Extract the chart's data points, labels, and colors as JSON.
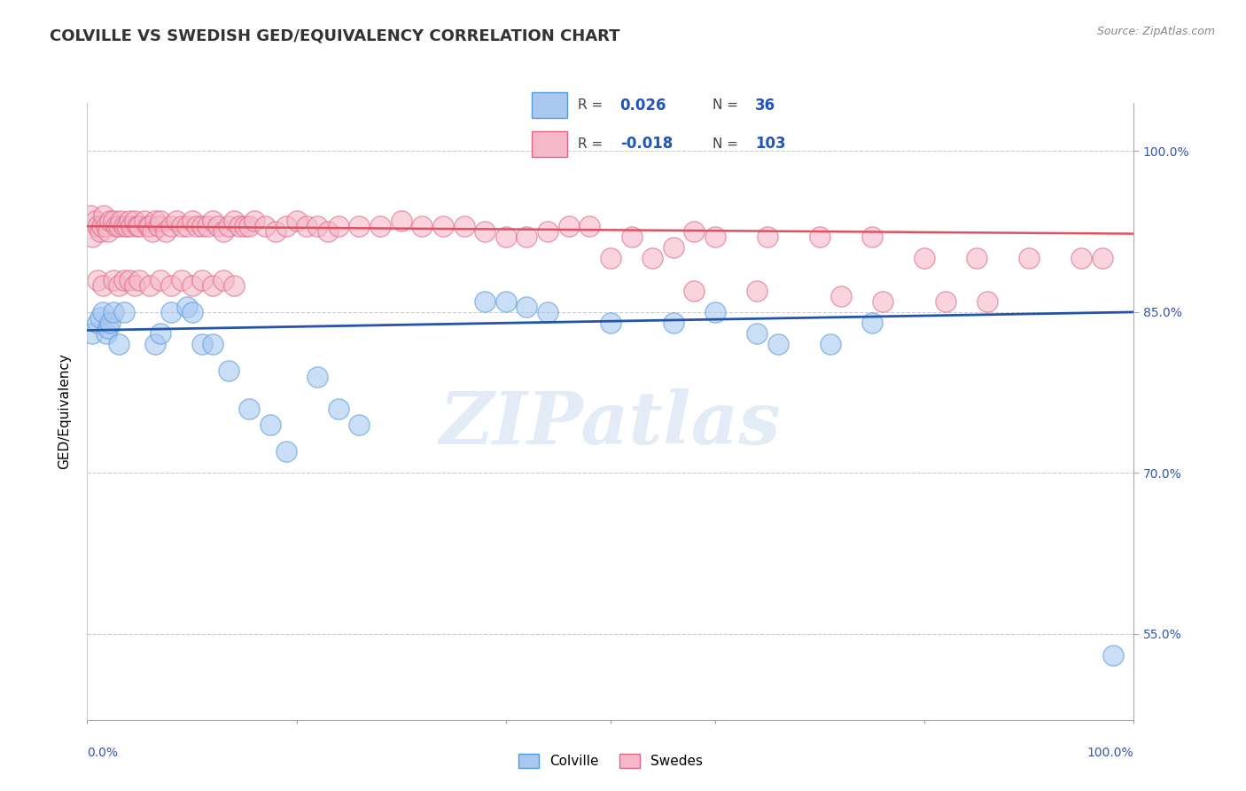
{
  "title": "COLVILLE VS SWEDISH GED/EQUIVALENCY CORRELATION CHART",
  "source": "Source: ZipAtlas.com",
  "ylabel": "GED/Equivalency",
  "blue_color": "#a8c8f0",
  "pink_color": "#f5b8c8",
  "blue_line_color": "#2255aa",
  "pink_line_color": "#e05060",
  "blue_edge_color": "#5599dd",
  "pink_edge_color": "#dd6688",
  "watermark_text": "ZIPatlas",
  "ytick_labels": [
    "55.0%",
    "70.0%",
    "85.0%",
    "100.0%"
  ],
  "ytick_values": [
    0.55,
    0.7,
    0.85,
    1.0
  ],
  "legend_r_blue": "0.026",
  "legend_n_blue": "36",
  "legend_r_pink": "-0.018",
  "legend_n_pink": "103",
  "blue_scatter_x": [
    0.005,
    0.01,
    0.012,
    0.015,
    0.018,
    0.02,
    0.022,
    0.025,
    0.03,
    0.035,
    0.065,
    0.07,
    0.08,
    0.095,
    0.1,
    0.11,
    0.12,
    0.135,
    0.155,
    0.175,
    0.19,
    0.22,
    0.24,
    0.26,
    0.38,
    0.4,
    0.42,
    0.44,
    0.5,
    0.56,
    0.6,
    0.64,
    0.66,
    0.71,
    0.75,
    0.98
  ],
  "blue_scatter_y": [
    0.83,
    0.84,
    0.845,
    0.85,
    0.83,
    0.835,
    0.84,
    0.85,
    0.82,
    0.85,
    0.82,
    0.83,
    0.85,
    0.855,
    0.85,
    0.82,
    0.82,
    0.795,
    0.76,
    0.745,
    0.72,
    0.79,
    0.76,
    0.745,
    0.86,
    0.86,
    0.855,
    0.85,
    0.84,
    0.84,
    0.85,
    0.83,
    0.82,
    0.82,
    0.84,
    0.53
  ],
  "pink_scatter_x": [
    0.003,
    0.005,
    0.008,
    0.01,
    0.012,
    0.014,
    0.016,
    0.018,
    0.02,
    0.022,
    0.025,
    0.028,
    0.03,
    0.032,
    0.035,
    0.038,
    0.04,
    0.042,
    0.045,
    0.048,
    0.05,
    0.055,
    0.058,
    0.06,
    0.062,
    0.065,
    0.068,
    0.07,
    0.075,
    0.08,
    0.085,
    0.09,
    0.095,
    0.1,
    0.105,
    0.11,
    0.115,
    0.12,
    0.125,
    0.13,
    0.135,
    0.14,
    0.145,
    0.15,
    0.155,
    0.16,
    0.17,
    0.18,
    0.19,
    0.2,
    0.21,
    0.22,
    0.23,
    0.24,
    0.26,
    0.28,
    0.3,
    0.32,
    0.34,
    0.36,
    0.38,
    0.4,
    0.42,
    0.44,
    0.46,
    0.48,
    0.5,
    0.52,
    0.54,
    0.56,
    0.58,
    0.6,
    0.65,
    0.7,
    0.75,
    0.8,
    0.85,
    0.9,
    0.95,
    0.97,
    0.58,
    0.64,
    0.72,
    0.76,
    0.82,
    0.86,
    0.01,
    0.015,
    0.025,
    0.03,
    0.035,
    0.04,
    0.045,
    0.05,
    0.06,
    0.07,
    0.08,
    0.09,
    0.1,
    0.11,
    0.12,
    0.13,
    0.14
  ],
  "pink_scatter_y": [
    0.94,
    0.92,
    0.935,
    0.93,
    0.925,
    0.93,
    0.94,
    0.93,
    0.925,
    0.935,
    0.935,
    0.93,
    0.93,
    0.935,
    0.93,
    0.93,
    0.935,
    0.93,
    0.935,
    0.93,
    0.93,
    0.935,
    0.93,
    0.93,
    0.925,
    0.935,
    0.93,
    0.935,
    0.925,
    0.93,
    0.935,
    0.93,
    0.93,
    0.935,
    0.93,
    0.93,
    0.93,
    0.935,
    0.93,
    0.925,
    0.93,
    0.935,
    0.93,
    0.93,
    0.93,
    0.935,
    0.93,
    0.925,
    0.93,
    0.935,
    0.93,
    0.93,
    0.925,
    0.93,
    0.93,
    0.93,
    0.935,
    0.93,
    0.93,
    0.93,
    0.925,
    0.92,
    0.92,
    0.925,
    0.93,
    0.93,
    0.9,
    0.92,
    0.9,
    0.91,
    0.925,
    0.92,
    0.92,
    0.92,
    0.92,
    0.9,
    0.9,
    0.9,
    0.9,
    0.9,
    0.87,
    0.87,
    0.865,
    0.86,
    0.86,
    0.86,
    0.88,
    0.875,
    0.88,
    0.875,
    0.88,
    0.88,
    0.875,
    0.88,
    0.875,
    0.88,
    0.875,
    0.88,
    0.875,
    0.88,
    0.875,
    0.88,
    0.875
  ],
  "blue_trend_x": [
    0.0,
    1.0
  ],
  "blue_trend_y": [
    0.833,
    0.85
  ],
  "pink_trend_x": [
    0.0,
    1.0
  ],
  "pink_trend_y": [
    0.93,
    0.923
  ],
  "xlim": [
    0.0,
    1.0
  ],
  "ylim": [
    0.47,
    1.045
  ],
  "background_color": "#ffffff",
  "grid_color": "#cccccc"
}
